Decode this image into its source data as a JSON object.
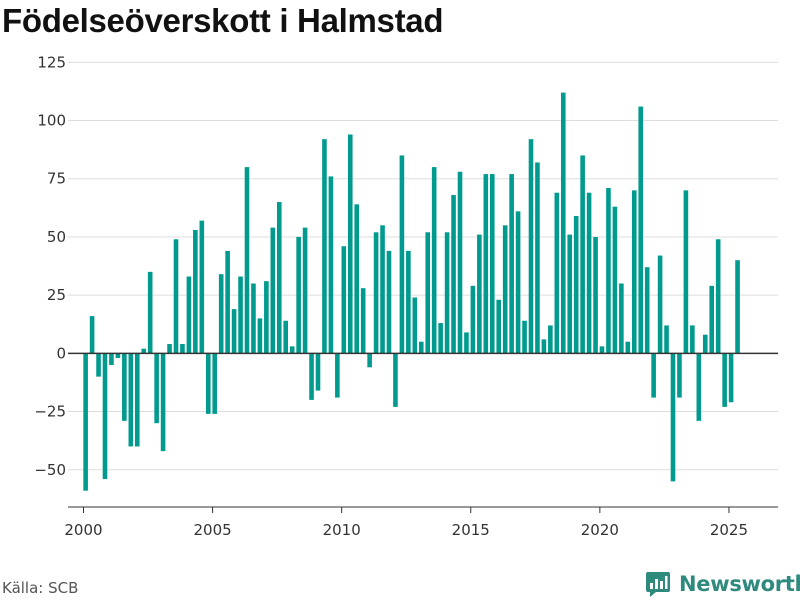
{
  "header": {
    "title": "Födelseöverskott i Halmstad"
  },
  "footer": {
    "source": "Källa: SCB",
    "brand": "Newsworthy"
  },
  "colors": {
    "bar": "#009b8e",
    "brand": "#2f8a7e",
    "grid": "#dddddd",
    "zero_line": "#333333"
  },
  "chart_data": {
    "type": "bar",
    "title": "Födelseöverskott i Halmstad",
    "xlabel": "",
    "ylabel": "",
    "ylim": [
      -66,
      126
    ],
    "xlim": [
      1999.4,
      2026.9
    ],
    "x_ticks": [
      2000,
      2005,
      2010,
      2015,
      2020,
      2025
    ],
    "x_tick_labels": [
      "2000",
      "2005",
      "2010",
      "2015",
      "2020",
      "2025"
    ],
    "y_ticks": [
      -50,
      -25,
      0,
      25,
      50,
      75,
      100,
      125
    ],
    "y_tick_labels": [
      "−50",
      "−25",
      "0",
      "25",
      "50",
      "75",
      "100",
      "125"
    ],
    "grid": true,
    "series": [
      {
        "x": [
          2000.083,
          2000.333,
          2000.583,
          2000.833,
          2001.083,
          2001.333,
          2001.583,
          2001.833,
          2002.083,
          2002.333,
          2002.583,
          2002.833,
          2003.083,
          2003.333,
          2003.583,
          2003.833,
          2004.083,
          2004.333,
          2004.583,
          2004.833,
          2005.083,
          2005.333,
          2005.583,
          2005.833,
          2006.083,
          2006.333,
          2006.583,
          2006.833,
          2007.083,
          2007.333,
          2007.583,
          2007.833,
          2008.083,
          2008.333,
          2008.583,
          2008.833,
          2009.083,
          2009.333,
          2009.583,
          2009.833,
          2010.083,
          2010.333,
          2010.583,
          2010.833,
          2011.083,
          2011.333,
          2011.583,
          2011.833,
          2012.083,
          2012.333,
          2012.583,
          2012.833,
          2013.083,
          2013.333,
          2013.583,
          2013.833,
          2014.083,
          2014.333,
          2014.583,
          2014.833,
          2015.083,
          2015.333,
          2015.583,
          2015.833,
          2016.083,
          2016.333,
          2016.583,
          2016.833,
          2017.083,
          2017.333,
          2017.583,
          2017.833,
          2018.083,
          2018.333,
          2018.583,
          2018.833,
          2019.083,
          2019.333,
          2019.583,
          2019.833,
          2020.083,
          2020.333,
          2020.583,
          2020.833,
          2021.083,
          2021.333,
          2021.583,
          2021.833,
          2022.083,
          2022.333,
          2022.583,
          2022.833,
          2023.083,
          2023.333,
          2023.583,
          2023.833,
          2024.083,
          2024.333,
          2024.583,
          2024.833,
          2025.083,
          2025.333
        ],
        "values": [
          -59,
          16,
          -10,
          -54,
          -5,
          -2,
          -29,
          -40,
          -40,
          2,
          35,
          -30,
          -42,
          4,
          49,
          4,
          33,
          53,
          57,
          -26,
          -26,
          34,
          44,
          19,
          33,
          80,
          30,
          15,
          31,
          54,
          65,
          14,
          3,
          50,
          54,
          -20,
          -16,
          92,
          76,
          -19,
          46,
          94,
          64,
          28,
          -6,
          52,
          55,
          44,
          -23,
          85,
          44,
          24,
          5,
          52,
          80,
          13,
          52,
          68,
          78,
          9,
          29,
          51,
          77,
          77,
          23,
          55,
          77,
          61,
          14,
          92,
          82,
          6,
          12,
          69,
          112,
          51,
          59,
          85,
          69,
          50,
          3,
          71,
          63,
          30,
          5,
          70,
          106,
          37,
          -19,
          42,
          12,
          -55,
          -19,
          70,
          12,
          -29,
          8,
          29,
          49,
          -23,
          -21,
          40
        ]
      }
    ]
  }
}
